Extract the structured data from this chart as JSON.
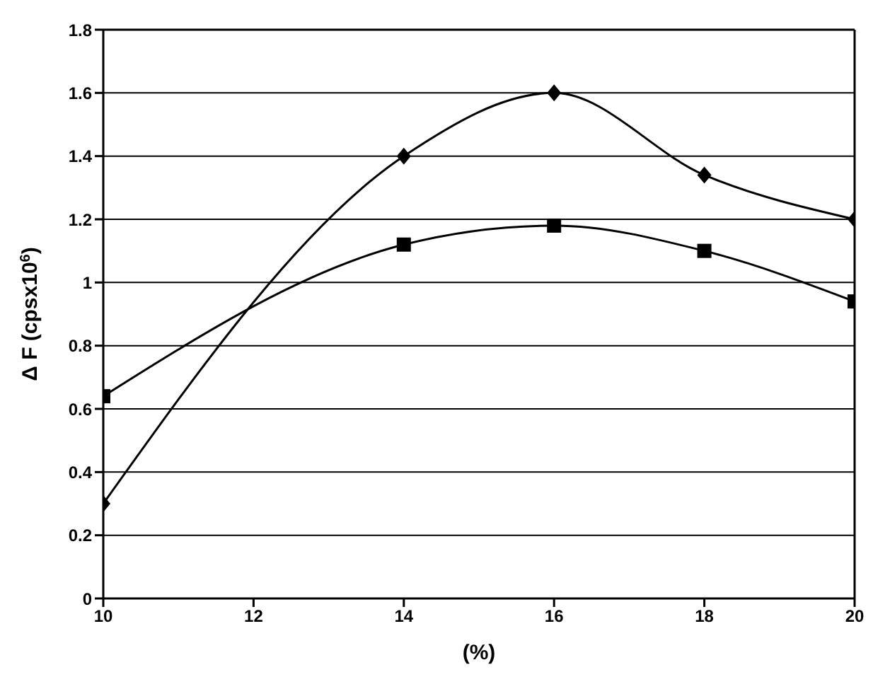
{
  "chart_data": {
    "type": "line",
    "xlabel": "(%)",
    "ylabel": "Δ F (cpsx10$^{6}$)",
    "x": [
      10,
      14,
      16,
      18,
      20
    ],
    "series": [
      {
        "color": "#000000",
        "marker": "diamond",
        "values": [
          0.3,
          1.4,
          1.6,
          1.34,
          1.2
        ]
      },
      {
        "color": "#000000",
        "marker": "square",
        "values": [
          0.64,
          1.12,
          1.18,
          1.1,
          0.94
        ]
      }
    ],
    "xlim": [
      10,
      20
    ],
    "xticks": [
      10,
      12,
      14,
      16,
      18,
      20
    ],
    "ylim": [
      0,
      1.8
    ],
    "yticks": [
      0,
      0.2,
      0.4,
      0.6,
      0.8,
      1,
      1.2,
      1.4,
      1.6,
      1.8
    ],
    "grid": "y",
    "line_style": "solid"
  }
}
